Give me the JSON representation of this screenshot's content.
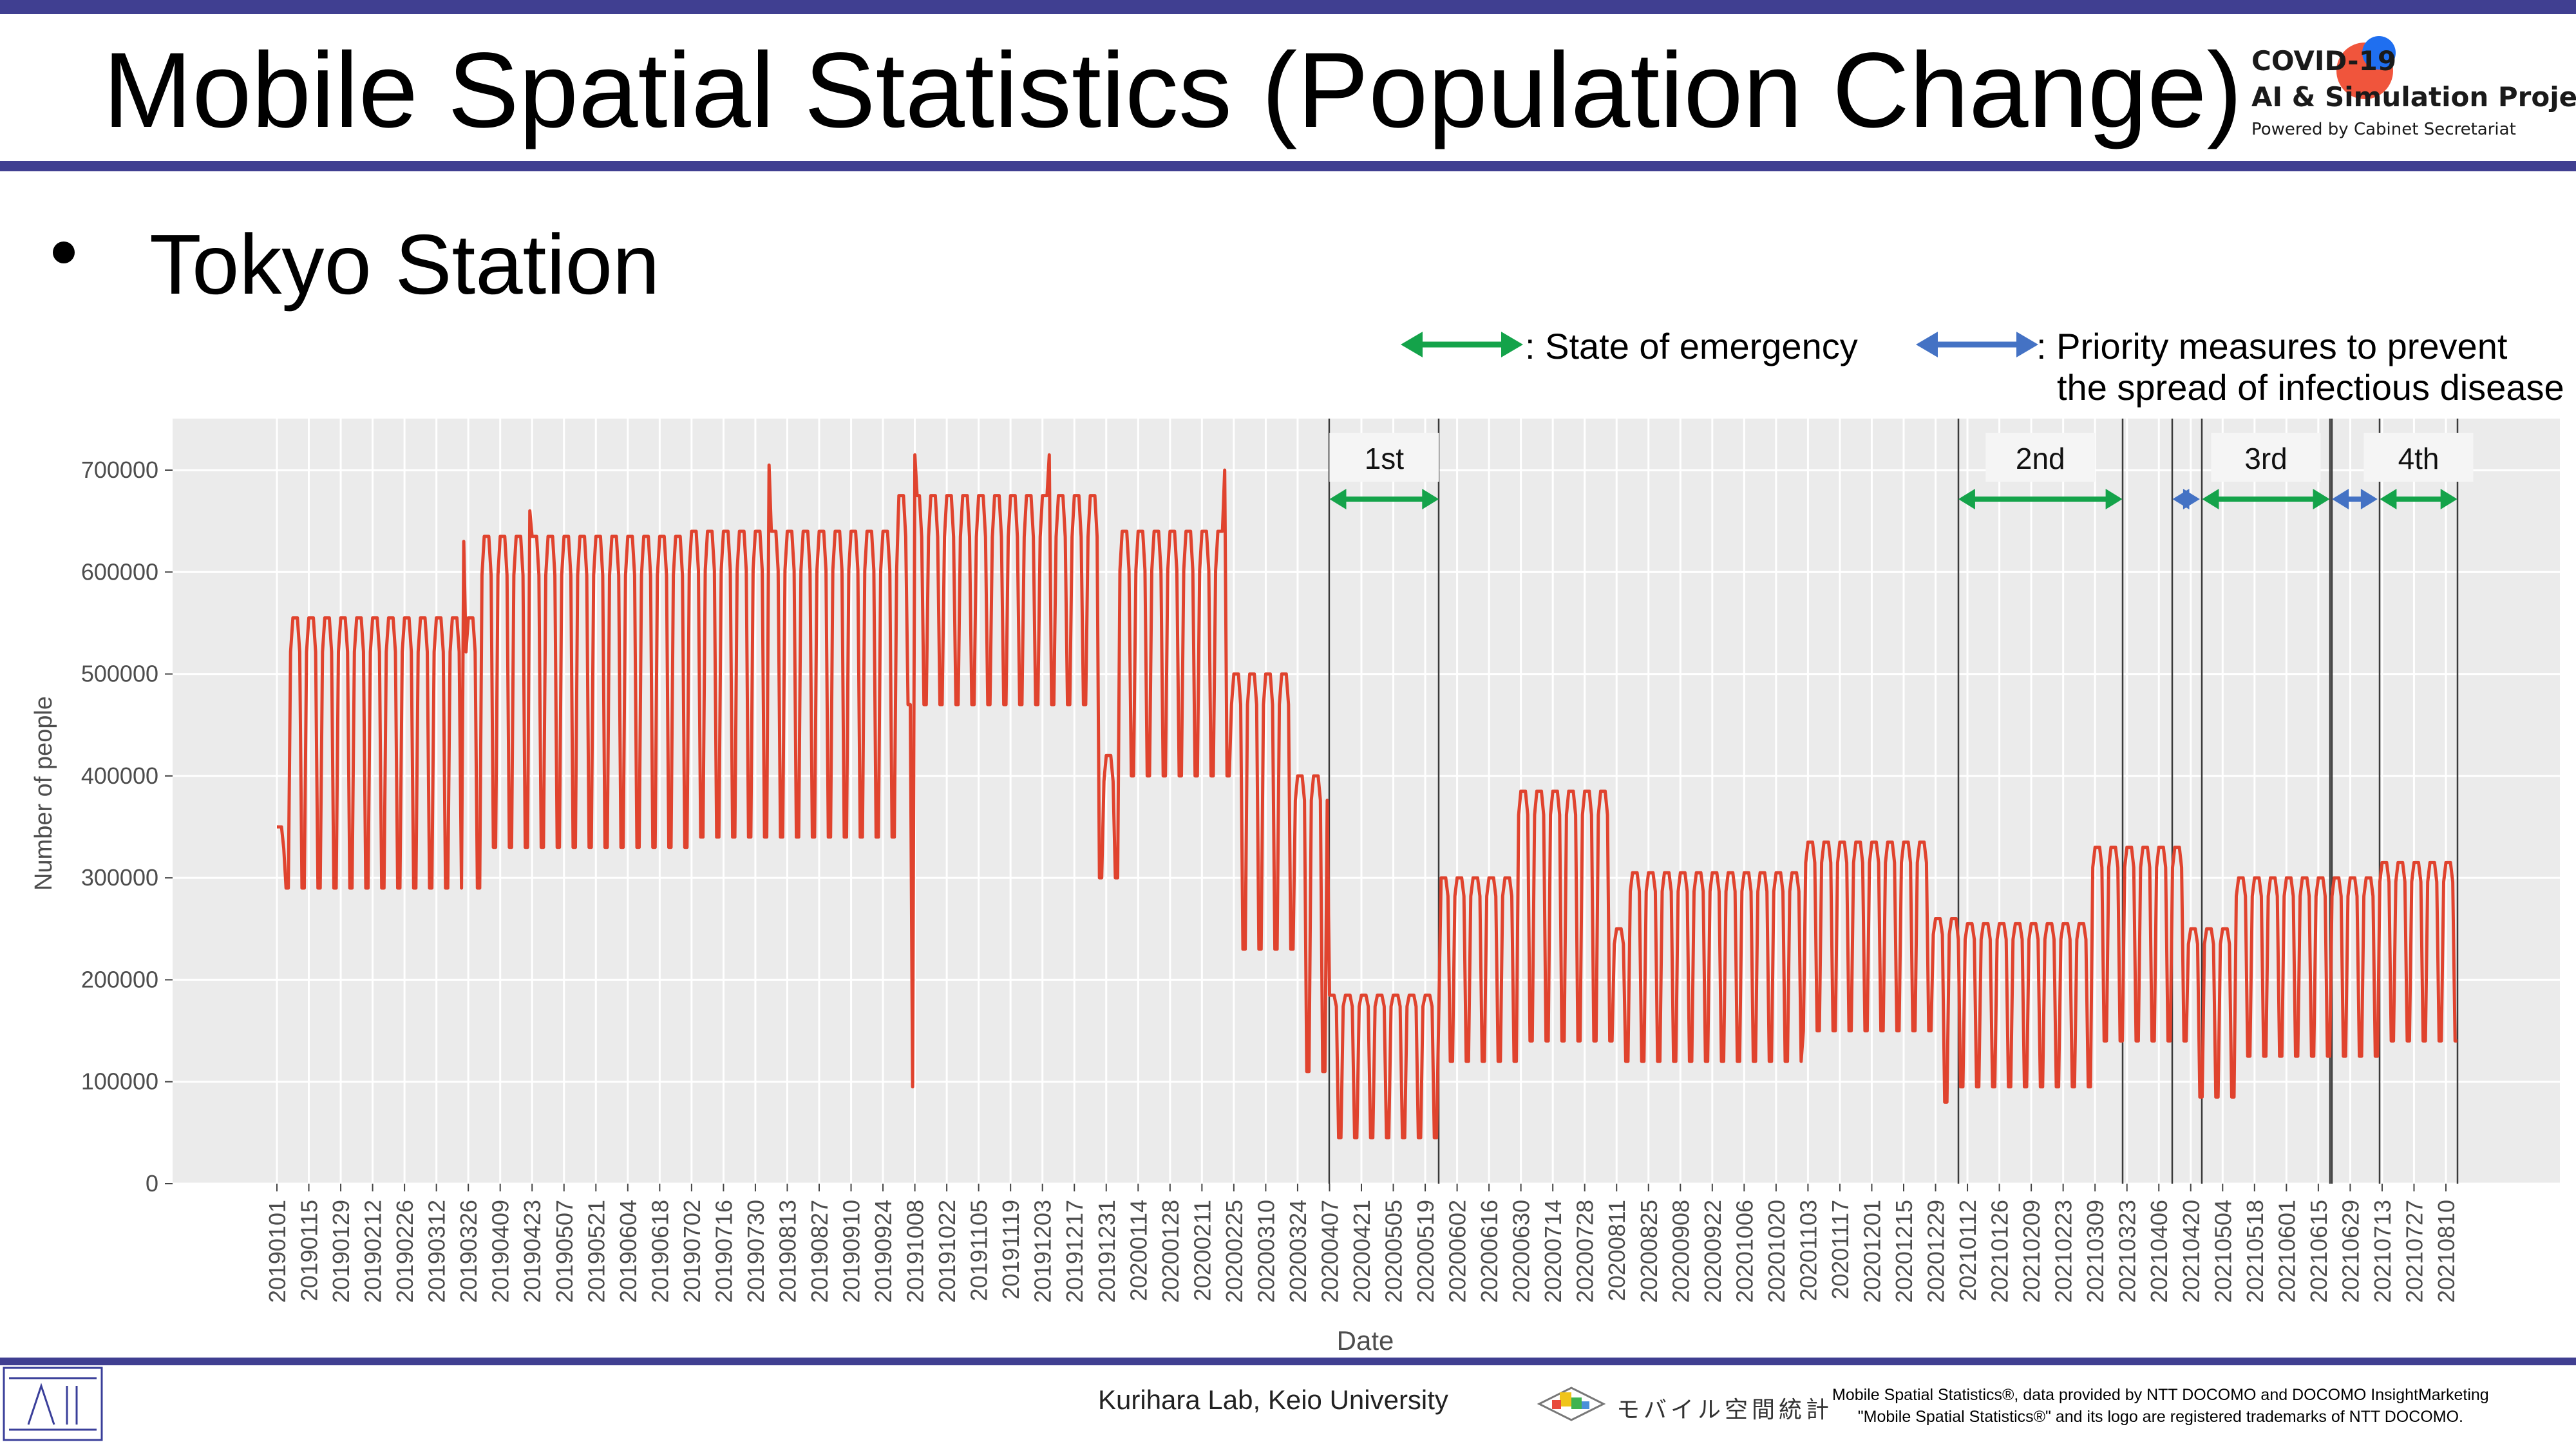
{
  "slide": {
    "title": "Mobile Spatial Statistics (Population Change)",
    "bullet": "Tokyo Station"
  },
  "logo": {
    "line1": "COVID-19",
    "line2": "AI & Simulation Project",
    "line3": "Powered by Cabinet Secretariat"
  },
  "legend": {
    "emergency": ": State of emergency",
    "priority_line1": ": Priority measures to prevent",
    "priority_line2": "the spread of infectious disease"
  },
  "footer": {
    "lab": "Kurihara Lab, Keio University",
    "note_line1": "Mobile Spatial Statistics®, data provided by NTT DOCOMO and DOCOMO InsightMarketing",
    "note_line2": "\"Mobile Spatial Statistics®\" and its logo are registered trademarks of NTT DOCOMO.",
    "mss_logo_text": "モバイル空間統計"
  },
  "colors": {
    "title_bar": "#403f91",
    "line": "#e0432e",
    "emergency_arrow": "#14a34a",
    "priority_arrow": "#4472c4",
    "panel_bg": "#ebebeb",
    "logo_red": "#f0553c",
    "logo_blue": "#1f6ff0"
  },
  "chart_data": {
    "type": "line",
    "title": "",
    "xlabel": "Date",
    "ylabel": "Number of people",
    "ylim": [
      0,
      750000
    ],
    "yticks": [
      0,
      100000,
      200000,
      300000,
      400000,
      500000,
      600000,
      700000
    ],
    "ytick_labels": [
      "0",
      "100000",
      "200000",
      "300000",
      "400000",
      "500000",
      "600000",
      "700000"
    ],
    "xrange": [
      "2019-01-01",
      "2021-08-20"
    ],
    "xtick_labels": [
      "20190101",
      "20190115",
      "20190129",
      "20190212",
      "20190226",
      "20190312",
      "20190326",
      "20190409",
      "20190423",
      "20190507",
      "20190521",
      "20190604",
      "20190618",
      "20190702",
      "20190716",
      "20190730",
      "20190813",
      "20190827",
      "20190910",
      "20190924",
      "20191008",
      "20191022",
      "20191105",
      "20191119",
      "20191203",
      "20191217",
      "20191231",
      "20200114",
      "20200128",
      "20200211",
      "20200225",
      "20200310",
      "20200324",
      "20200407",
      "20200421",
      "20200505",
      "20200519",
      "20200602",
      "20200616",
      "20200630",
      "20200714",
      "20200728",
      "20200811",
      "20200825",
      "20200908",
      "20200922",
      "20201006",
      "20201020",
      "20201103",
      "20201117",
      "20201201",
      "20201215",
      "20201229",
      "20210112",
      "20210126",
      "20210209",
      "20210223",
      "20210309",
      "20210323",
      "20210406",
      "20210420",
      "20210504",
      "20210518",
      "20210601",
      "20210615",
      "20210629",
      "20210713",
      "20210727",
      "20210810"
    ],
    "grid": true,
    "legend_position": "top-right",
    "series": [
      {
        "granularity": "daily; weekday peak / weekend trough by period",
        "periods": [
          {
            "start": "2019-01-01",
            "end": "2019-01-04",
            "weekday": 350000,
            "weekend": 220000
          },
          {
            "start": "2019-01-05",
            "end": "2019-03-31",
            "weekday": 555000,
            "weekend": 290000
          },
          {
            "start": "2019-04-01",
            "end": "2019-06-30",
            "weekday": 635000,
            "weekend": 330000
          },
          {
            "start": "2019-07-01",
            "end": "2019-09-30",
            "weekday": 640000,
            "weekend": 340000
          },
          {
            "start": "2019-10-01",
            "end": "2019-12-27",
            "weekday": 675000,
            "weekend": 470000
          },
          {
            "start": "2019-12-28",
            "end": "2020-01-05",
            "weekday": 420000,
            "weekend": 300000
          },
          {
            "start": "2020-01-06",
            "end": "2020-02-23",
            "weekday": 640000,
            "weekend": 400000
          },
          {
            "start": "2020-02-24",
            "end": "2020-03-22",
            "weekday": 500000,
            "weekend": 230000
          },
          {
            "start": "2020-03-23",
            "end": "2020-04-06",
            "weekday": 400000,
            "weekend": 110000
          },
          {
            "start": "2020-04-07",
            "end": "2020-05-25",
            "weekday": 185000,
            "weekend": 45000
          },
          {
            "start": "2020-05-26",
            "end": "2020-06-28",
            "weekday": 300000,
            "weekend": 120000
          },
          {
            "start": "2020-06-29",
            "end": "2020-08-09",
            "weekday": 385000,
            "weekend": 140000
          },
          {
            "start": "2020-08-10",
            "end": "2020-08-16",
            "weekday": 250000,
            "weekend": 120000
          },
          {
            "start": "2020-08-17",
            "end": "2020-10-31",
            "weekday": 305000,
            "weekend": 120000
          },
          {
            "start": "2020-11-01",
            "end": "2020-12-27",
            "weekday": 335000,
            "weekend": 150000
          },
          {
            "start": "2020-12-28",
            "end": "2021-01-07",
            "weekday": 260000,
            "weekend": 80000
          },
          {
            "start": "2021-01-08",
            "end": "2021-03-07",
            "weekday": 255000,
            "weekend": 95000
          },
          {
            "start": "2021-03-08",
            "end": "2021-04-18",
            "weekday": 330000,
            "weekend": 140000
          },
          {
            "start": "2021-04-19",
            "end": "2021-05-09",
            "weekday": 250000,
            "weekend": 85000
          },
          {
            "start": "2021-05-10",
            "end": "2021-07-11",
            "weekday": 300000,
            "weekend": 125000
          },
          {
            "start": "2021-07-12",
            "end": "2021-08-15",
            "weekday": 315000,
            "weekend": 140000
          }
        ],
        "spikes": [
          {
            "date": "2019-03-24",
            "value": 630000
          },
          {
            "date": "2019-04-22",
            "value": 660000
          },
          {
            "date": "2019-08-05",
            "value": 705000
          },
          {
            "date": "2019-10-07",
            "value": 95000
          },
          {
            "date": "2019-10-08",
            "value": 715000
          },
          {
            "date": "2019-12-06",
            "value": 715000
          },
          {
            "date": "2020-02-21",
            "value": 700000
          }
        ]
      }
    ],
    "periods_marked": [
      {
        "label": "1st",
        "kind": "emergency",
        "start": "2020-04-07",
        "end": "2020-05-25"
      },
      {
        "label": "2nd",
        "kind": "emergency",
        "start": "2021-01-08",
        "end": "2021-03-21"
      },
      {
        "label": "",
        "kind": "priority",
        "start": "2021-04-12",
        "end": "2021-04-24"
      },
      {
        "label": "3rd",
        "kind": "emergency",
        "start": "2021-04-25",
        "end": "2021-06-20"
      },
      {
        "label": "",
        "kind": "priority",
        "start": "2021-06-21",
        "end": "2021-07-11"
      },
      {
        "label": "4th",
        "kind": "emergency",
        "start": "2021-07-12",
        "end": "2021-08-15"
      }
    ],
    "period_label_text": [
      "1st",
      "2nd",
      "3rd",
      "4th"
    ]
  }
}
